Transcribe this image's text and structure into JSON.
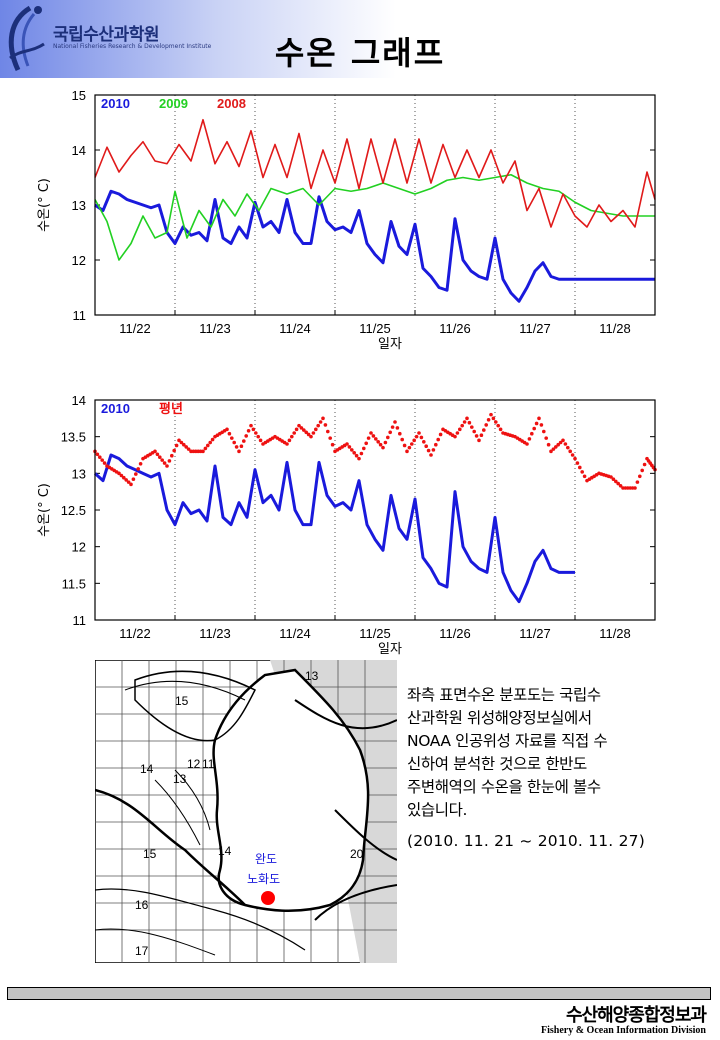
{
  "header": {
    "org_name": "국립수산과학원",
    "org_subtitle": "National Fisheries Research & Development Institute",
    "title": "수온 그래프"
  },
  "colors": {
    "blue": "#1a1adc",
    "green": "#22d022",
    "red": "#e01a1a",
    "dots": "#ee1111",
    "location": "#ff0000"
  },
  "chart_data": [
    {
      "type": "line",
      "ylabel": "수온(° C)",
      "xlabel": "일자",
      "categories": [
        "11/22",
        "11/23",
        "11/24",
        "11/25",
        "11/26",
        "11/27",
        "11/28"
      ],
      "ylim": [
        11,
        15
      ],
      "yticks": [
        "11",
        "12",
        "13",
        "14",
        "15"
      ],
      "grid": "dotted vertical",
      "legend": "top-left",
      "series": [
        {
          "name": "2010",
          "color": "#1a1adc",
          "x": [
            0,
            0.1,
            0.2,
            0.3,
            0.4,
            0.5,
            0.6,
            0.7,
            0.8,
            0.9,
            1.0,
            1.1,
            1.2,
            1.3,
            1.4,
            1.5,
            1.6,
            1.7,
            1.8,
            1.9,
            2.0,
            2.1,
            2.2,
            2.3,
            2.4,
            2.5,
            2.6,
            2.7,
            2.8,
            2.9,
            3.0,
            3.1,
            3.2,
            3.3,
            3.4,
            3.5,
            3.6,
            3.7,
            3.8,
            3.9,
            4.0,
            4.1,
            4.2,
            4.3,
            4.4,
            4.5,
            4.6,
            4.7,
            4.8,
            4.9,
            5.0,
            5.1,
            5.2,
            5.3,
            5.4,
            5.5,
            5.6,
            5.7,
            5.8,
            5.9,
            6.0,
            6.1,
            6.2,
            6.3,
            6.4,
            6.5,
            6.6,
            6.7,
            6.8,
            6.9,
            7.0
          ],
          "y": [
            13.0,
            12.9,
            13.25,
            13.2,
            13.1,
            13.05,
            13.0,
            12.95,
            13.0,
            12.5,
            12.3,
            12.6,
            12.45,
            12.5,
            12.35,
            13.1,
            12.4,
            12.3,
            12.6,
            12.4,
            13.05,
            12.6,
            12.7,
            12.5,
            13.1,
            12.5,
            12.3,
            12.3,
            13.15,
            12.7,
            12.55,
            12.6,
            12.5,
            12.9,
            12.3,
            12.1,
            11.95,
            12.7,
            12.25,
            12.1,
            12.65,
            11.85,
            11.7,
            11.5,
            11.45,
            12.75,
            12.0,
            11.8,
            11.7,
            11.65,
            12.4,
            11.65,
            11.4,
            11.25,
            11.5,
            11.8,
            11.95,
            11.7,
            11.65,
            11.65,
            11.65,
            11.65,
            11.65,
            11.65,
            11.65,
            11.65,
            11.65,
            11.65,
            11.65,
            11.65,
            11.65
          ]
        },
        {
          "name": "2009",
          "color": "#22d022",
          "x": [
            0,
            0.15,
            0.3,
            0.45,
            0.6,
            0.75,
            0.9,
            1.0,
            1.15,
            1.3,
            1.45,
            1.6,
            1.75,
            1.9,
            2.05,
            2.2,
            2.4,
            2.6,
            2.8,
            3.0,
            3.2,
            3.4,
            3.6,
            3.8,
            4.0,
            4.2,
            4.4,
            4.6,
            4.8,
            5.0,
            5.2,
            5.4,
            5.6,
            5.8,
            6.0,
            6.2,
            6.4,
            6.6,
            6.8,
            7.0
          ],
          "y": [
            13.1,
            12.7,
            12.0,
            12.3,
            12.8,
            12.4,
            12.5,
            13.25,
            12.4,
            12.9,
            12.6,
            13.1,
            12.8,
            13.2,
            12.9,
            13.3,
            13.2,
            13.3,
            13.0,
            13.3,
            13.25,
            13.3,
            13.4,
            13.3,
            13.2,
            13.3,
            13.45,
            13.5,
            13.45,
            13.5,
            13.55,
            13.4,
            13.3,
            13.25,
            13.05,
            12.9,
            12.85,
            12.8,
            12.8,
            12.8
          ]
        },
        {
          "name": "2008",
          "color": "#e01a1a",
          "x": [
            0,
            0.15,
            0.3,
            0.45,
            0.6,
            0.75,
            0.9,
            1.05,
            1.2,
            1.35,
            1.5,
            1.65,
            1.8,
            1.95,
            2.1,
            2.25,
            2.4,
            2.55,
            2.7,
            2.85,
            3.0,
            3.15,
            3.3,
            3.45,
            3.6,
            3.75,
            3.9,
            4.05,
            4.2,
            4.35,
            4.5,
            4.65,
            4.8,
            4.95,
            5.1,
            5.25,
            5.4,
            5.55,
            5.7,
            5.85,
            6.0,
            6.15,
            6.3,
            6.45,
            6.6,
            6.75,
            6.9,
            7.0
          ],
          "y": [
            13.5,
            14.05,
            13.6,
            13.9,
            14.15,
            13.8,
            13.75,
            14.1,
            13.8,
            14.55,
            13.75,
            14.15,
            13.7,
            14.35,
            13.5,
            14.1,
            13.5,
            14.3,
            13.3,
            14.0,
            13.4,
            14.2,
            13.3,
            14.2,
            13.4,
            14.2,
            13.4,
            14.2,
            13.4,
            14.1,
            13.5,
            14.0,
            13.5,
            14.0,
            13.4,
            13.8,
            12.9,
            13.3,
            12.6,
            13.2,
            12.8,
            12.6,
            13.0,
            12.7,
            12.9,
            12.6,
            13.6,
            13.1
          ]
        }
      ]
    },
    {
      "type": "scatter",
      "ylabel": "수온(° C)",
      "xlabel": "일자",
      "categories": [
        "11/22",
        "11/23",
        "11/24",
        "11/25",
        "11/26",
        "11/27",
        "11/28"
      ],
      "ylim": [
        11,
        14
      ],
      "yticks": [
        "11",
        "11.5",
        "12",
        "12.5",
        "13",
        "13.5",
        "14"
      ],
      "grid": "dotted vertical",
      "legend": "top-left",
      "series": [
        {
          "name": "2010",
          "kind": "line",
          "color": "#1a1adc",
          "x": [
            0,
            0.1,
            0.2,
            0.3,
            0.4,
            0.5,
            0.6,
            0.7,
            0.8,
            0.9,
            1.0,
            1.1,
            1.2,
            1.3,
            1.4,
            1.5,
            1.6,
            1.7,
            1.8,
            1.9,
            2.0,
            2.1,
            2.2,
            2.3,
            2.4,
            2.5,
            2.6,
            2.7,
            2.8,
            2.9,
            3.0,
            3.1,
            3.2,
            3.3,
            3.4,
            3.5,
            3.6,
            3.7,
            3.8,
            3.9,
            4.0,
            4.1,
            4.2,
            4.3,
            4.4,
            4.5,
            4.6,
            4.7,
            4.8,
            4.9,
            5.0,
            5.1,
            5.2,
            5.3,
            5.4,
            5.5,
            5.6,
            5.7,
            5.8,
            5.9,
            6.0
          ],
          "y": [
            13.0,
            12.9,
            13.25,
            13.2,
            13.1,
            13.05,
            13.0,
            12.95,
            13.0,
            12.5,
            12.3,
            12.6,
            12.45,
            12.5,
            12.35,
            13.1,
            12.4,
            12.3,
            12.6,
            12.4,
            13.05,
            12.6,
            12.7,
            12.5,
            13.15,
            12.5,
            12.3,
            12.3,
            13.15,
            12.7,
            12.55,
            12.6,
            12.5,
            12.9,
            12.3,
            12.1,
            11.95,
            12.7,
            12.25,
            12.1,
            12.65,
            11.85,
            11.7,
            11.5,
            11.45,
            12.75,
            12.0,
            11.8,
            11.7,
            11.65,
            12.4,
            11.65,
            11.4,
            11.25,
            11.5,
            11.8,
            11.95,
            11.7,
            11.65,
            11.65,
            11.65
          ]
        },
        {
          "name": "평년",
          "kind": "dots",
          "color": "#ee1111",
          "x": [
            0,
            0.15,
            0.3,
            0.45,
            0.6,
            0.75,
            0.9,
            1.05,
            1.2,
            1.35,
            1.5,
            1.65,
            1.8,
            1.95,
            2.1,
            2.25,
            2.4,
            2.55,
            2.7,
            2.85,
            3.0,
            3.15,
            3.3,
            3.45,
            3.6,
            3.75,
            3.9,
            4.05,
            4.2,
            4.35,
            4.5,
            4.65,
            4.8,
            4.95,
            5.1,
            5.25,
            5.4,
            5.55,
            5.7,
            5.85,
            6.0,
            6.15,
            6.3,
            6.45,
            6.6,
            6.75,
            6.9,
            7.0
          ],
          "y": [
            13.3,
            13.1,
            13.0,
            12.85,
            13.2,
            13.3,
            13.1,
            13.45,
            13.3,
            13.3,
            13.5,
            13.6,
            13.3,
            13.65,
            13.4,
            13.5,
            13.4,
            13.65,
            13.5,
            13.75,
            13.3,
            13.4,
            13.2,
            13.55,
            13.35,
            13.7,
            13.3,
            13.55,
            13.25,
            13.6,
            13.5,
            13.75,
            13.45,
            13.8,
            13.55,
            13.5,
            13.4,
            13.75,
            13.3,
            13.45,
            13.2,
            12.9,
            13.0,
            12.95,
            12.8,
            12.8,
            13.2,
            13.05
          ]
        }
      ]
    }
  ],
  "map": {
    "contours": [
      "13",
      "15",
      "12",
      "11",
      "14",
      "13",
      "14",
      "15",
      "20",
      "16",
      "17"
    ],
    "location_labels": [
      "완도",
      "노화도"
    ]
  },
  "description": {
    "lines": [
      "좌측 표면수온 분포도는 국립수",
      "산과학원 위성해양정보실에서",
      "NOAA 인공위성 자료를 직접 수",
      "신하여 분석한 것으로  한반도",
      "주변해역의 수온을 한눈에 볼수",
      "있습니다."
    ],
    "period": "(2010. 11. 21 ~ 2010. 11. 27)"
  },
  "footer": {
    "ko": "수산해양종합정보과",
    "en": "Fishery & Ocean Information Division"
  }
}
